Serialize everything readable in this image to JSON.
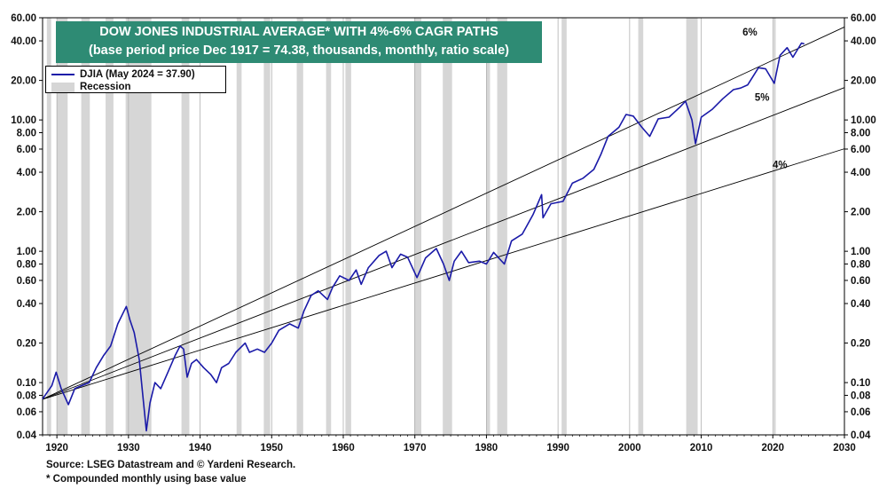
{
  "chart_data": {
    "type": "line",
    "title": "DOW JONES INDUSTRIAL AVERAGE* WITH 4%-6% CAGR PATHS",
    "subtitle": "(base period price Dec 1917 = 74.38, thousands, monthly, ratio scale)",
    "scale": "log",
    "xlim": [
      1918,
      2030
    ],
    "ylim": [
      0.04,
      60
    ],
    "x_ticks": [
      "1920",
      "1930",
      "1940",
      "1950",
      "1960",
      "1970",
      "1980",
      "1990",
      "2000",
      "2010",
      "2020",
      "2030"
    ],
    "y_ticks": [
      "60.00",
      "40.00",
      "20.00",
      "10.00",
      "8.00",
      "6.00",
      "4.00",
      "2.00",
      "1.00",
      "0.80",
      "0.60",
      "0.40",
      "0.20",
      "0.10",
      "0.08",
      "0.06",
      "0.04"
    ],
    "grid": "vertical",
    "legend_placement": "top-left",
    "legend": {
      "series_label": "DJIA (May 2024 = 37.90)",
      "recession_label": "Recession"
    },
    "series": [
      {
        "name": "DJIA (May 2024 = 37.90)",
        "color": "#1a1aa8",
        "points": [
          [
            1918.0,
            0.075
          ],
          [
            1919.3,
            0.095
          ],
          [
            1919.9,
            0.12
          ],
          [
            1920.6,
            0.09
          ],
          [
            1921.6,
            0.068
          ],
          [
            1922.5,
            0.09
          ],
          [
            1923.5,
            0.095
          ],
          [
            1924.5,
            0.1
          ],
          [
            1925.5,
            0.13
          ],
          [
            1926.5,
            0.16
          ],
          [
            1927.5,
            0.19
          ],
          [
            1928.5,
            0.28
          ],
          [
            1929.7,
            0.38
          ],
          [
            1930.2,
            0.3
          ],
          [
            1930.8,
            0.24
          ],
          [
            1931.5,
            0.15
          ],
          [
            1932.0,
            0.08
          ],
          [
            1932.5,
            0.043
          ],
          [
            1933.0,
            0.07
          ],
          [
            1933.7,
            0.1
          ],
          [
            1934.5,
            0.09
          ],
          [
            1935.5,
            0.12
          ],
          [
            1936.5,
            0.16
          ],
          [
            1937.2,
            0.19
          ],
          [
            1937.7,
            0.18
          ],
          [
            1938.2,
            0.11
          ],
          [
            1938.8,
            0.14
          ],
          [
            1939.5,
            0.15
          ],
          [
            1940.5,
            0.13
          ],
          [
            1941.5,
            0.115
          ],
          [
            1942.3,
            0.1
          ],
          [
            1943.0,
            0.13
          ],
          [
            1944.0,
            0.14
          ],
          [
            1945.0,
            0.17
          ],
          [
            1946.3,
            0.2
          ],
          [
            1946.9,
            0.17
          ],
          [
            1948.0,
            0.18
          ],
          [
            1949.0,
            0.17
          ],
          [
            1950.0,
            0.2
          ],
          [
            1951.0,
            0.25
          ],
          [
            1952.5,
            0.28
          ],
          [
            1953.7,
            0.26
          ],
          [
            1954.5,
            0.35
          ],
          [
            1955.5,
            0.46
          ],
          [
            1956.5,
            0.5
          ],
          [
            1957.8,
            0.43
          ],
          [
            1958.5,
            0.53
          ],
          [
            1959.5,
            0.65
          ],
          [
            1960.8,
            0.6
          ],
          [
            1961.8,
            0.72
          ],
          [
            1962.5,
            0.56
          ],
          [
            1963.5,
            0.75
          ],
          [
            1965.0,
            0.93
          ],
          [
            1966.0,
            1.0
          ],
          [
            1966.8,
            0.75
          ],
          [
            1968.0,
            0.95
          ],
          [
            1969.0,
            0.9
          ],
          [
            1970.3,
            0.63
          ],
          [
            1971.5,
            0.89
          ],
          [
            1973.0,
            1.05
          ],
          [
            1974.0,
            0.8
          ],
          [
            1974.8,
            0.6
          ],
          [
            1975.5,
            0.84
          ],
          [
            1976.5,
            1.0
          ],
          [
            1977.5,
            0.82
          ],
          [
            1979.0,
            0.84
          ],
          [
            1980.0,
            0.8
          ],
          [
            1981.0,
            0.98
          ],
          [
            1982.5,
            0.8
          ],
          [
            1983.5,
            1.2
          ],
          [
            1985.0,
            1.35
          ],
          [
            1986.5,
            1.9
          ],
          [
            1987.7,
            2.7
          ],
          [
            1987.9,
            1.8
          ],
          [
            1989.0,
            2.3
          ],
          [
            1990.7,
            2.4
          ],
          [
            1992.0,
            3.3
          ],
          [
            1993.5,
            3.6
          ],
          [
            1995.0,
            4.2
          ],
          [
            1996.0,
            5.5
          ],
          [
            1997.0,
            7.5
          ],
          [
            1998.5,
            8.8
          ],
          [
            1999.5,
            11.0
          ],
          [
            2000.5,
            10.7
          ],
          [
            2001.7,
            8.8
          ],
          [
            2002.8,
            7.5
          ],
          [
            2004.0,
            10.2
          ],
          [
            2005.5,
            10.5
          ],
          [
            2007.0,
            12.5
          ],
          [
            2007.8,
            13.9
          ],
          [
            2008.7,
            10.0
          ],
          [
            2009.2,
            6.6
          ],
          [
            2010.0,
            10.5
          ],
          [
            2011.5,
            12.0
          ],
          [
            2013.0,
            14.5
          ],
          [
            2014.5,
            17.0
          ],
          [
            2015.5,
            17.5
          ],
          [
            2016.5,
            18.5
          ],
          [
            2018.0,
            25.0
          ],
          [
            2019.0,
            24.5
          ],
          [
            2020.2,
            19.0
          ],
          [
            2021.0,
            31.0
          ],
          [
            2022.0,
            35.5
          ],
          [
            2022.8,
            30.0
          ],
          [
            2024.0,
            38.5
          ],
          [
            2024.4,
            37.9
          ]
        ]
      },
      {
        "name": "6%",
        "color": "#000000",
        "cagr": 0.06,
        "base_value": 0.07438,
        "base_year": 1917.92
      },
      {
        "name": "5%",
        "color": "#000000",
        "cagr": 0.05,
        "base_value": 0.07438,
        "base_year": 1917.92
      },
      {
        "name": "4%",
        "color": "#000000",
        "cagr": 0.04,
        "base_value": 0.07438,
        "base_year": 1917.92
      }
    ],
    "annotations": [
      {
        "text": "6%",
        "x": 2016.8,
        "y": 44.0
      },
      {
        "text": "5%",
        "x": 2018.5,
        "y": 14.0
      },
      {
        "text": "4%",
        "x": 2021.0,
        "y": 4.3
      }
    ],
    "recessions": [
      [
        1918.6,
        1919.2
      ],
      [
        1920.0,
        1921.5
      ],
      [
        1923.4,
        1924.6
      ],
      [
        1926.8,
        1927.9
      ],
      [
        1929.6,
        1933.2
      ],
      [
        1937.4,
        1938.5
      ],
      [
        1945.1,
        1945.8
      ],
      [
        1948.9,
        1949.8
      ],
      [
        1953.5,
        1954.4
      ],
      [
        1957.6,
        1958.3
      ],
      [
        1960.3,
        1961.1
      ],
      [
        1969.9,
        1970.9
      ],
      [
        1973.9,
        1975.2
      ],
      [
        1980.0,
        1980.5
      ],
      [
        1981.5,
        1982.9
      ],
      [
        1990.5,
        1991.2
      ],
      [
        2001.2,
        2001.9
      ],
      [
        2007.9,
        2009.5
      ],
      [
        2020.1,
        2020.4
      ]
    ],
    "recession_color": "#d6d6d6"
  },
  "footer": {
    "source": "Source: LSEG Datastream and © Yardeni Research.",
    "note": "* Compounded monthly using base value"
  }
}
